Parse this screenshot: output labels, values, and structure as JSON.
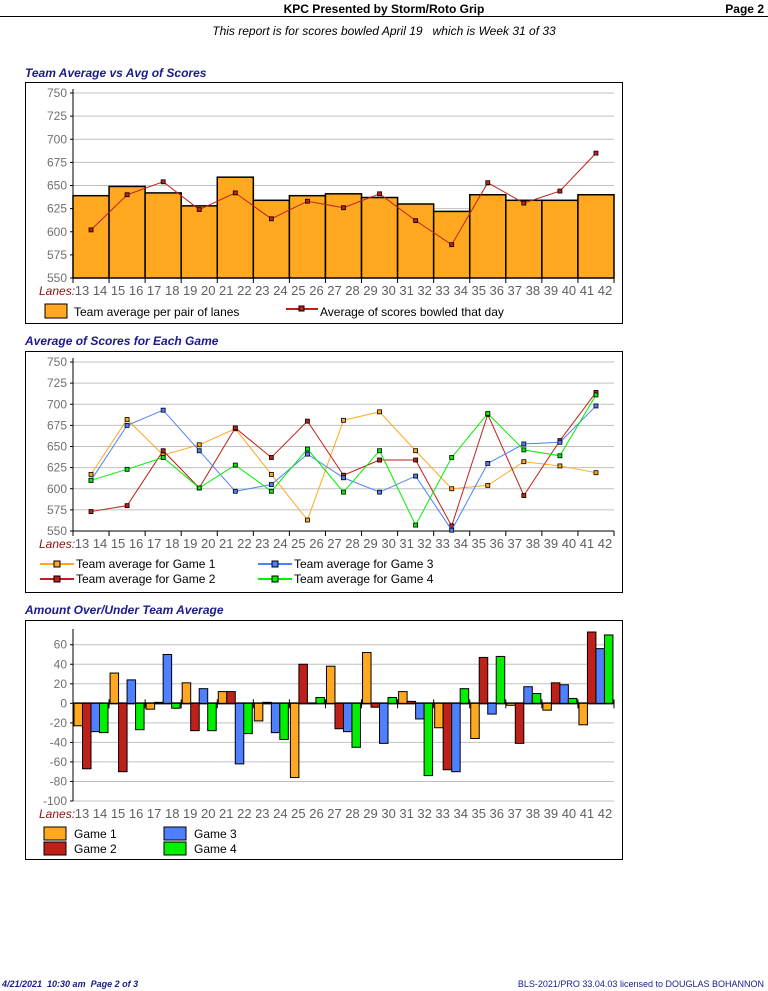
{
  "header": {
    "title": "KPC Presented by Storm/Roto Grip",
    "page": "Page 2"
  },
  "subtitle": "This report is for scores bowled April 19   which is Week 31 of 33",
  "footer": {
    "left": "4/21/2021  10:30 am  Page 2 of 3",
    "right": "BLS-2021/PRO 33.04.03 licensed to DOUGLAS BOHANNON"
  },
  "colors": {
    "bar": "#ffa820",
    "line": "#c0201a",
    "game1": "#ffa820",
    "game2": "#c0201a",
    "game3": "#4f80ff",
    "game4": "#00f000",
    "title": "#1a1a8c"
  },
  "chart_data": [
    {
      "type": "bar",
      "title": "Team Average vs Avg of Scores",
      "xlabel": "Lanes:",
      "categories": [
        "13 14",
        "15 16",
        "17 18",
        "19 20",
        "21 22",
        "23 24",
        "25 26",
        "27 28",
        "29 30",
        "31 32",
        "33 34",
        "35 36",
        "37 38",
        "39 40",
        "41 42"
      ],
      "ylim": [
        550,
        750
      ],
      "yticks": [
        550,
        575,
        600,
        625,
        650,
        675,
        700,
        725,
        750
      ],
      "grid": true,
      "legend": "bottom",
      "series": [
        {
          "name": "Team average per pair of lanes",
          "kind": "bar",
          "values": [
            639,
            649,
            642,
            628,
            659,
            634,
            639,
            641,
            637,
            630,
            622,
            640,
            634,
            634,
            640
          ]
        },
        {
          "name": "Average of scores bowled that day",
          "kind": "line",
          "values": [
            602,
            640,
            654,
            624,
            642,
            614,
            633,
            626,
            641,
            612,
            586,
            653,
            631,
            644,
            685
          ]
        }
      ]
    },
    {
      "type": "line",
      "title": "Average of Scores for Each Game",
      "xlabel": "Lanes:",
      "categories": [
        "13 14",
        "15 16",
        "17 18",
        "19 20",
        "21 22",
        "23 24",
        "25 26",
        "27 28",
        "29 30",
        "31 32",
        "33 34",
        "35 36",
        "37 38",
        "39 40",
        "41 42"
      ],
      "ylim": [
        550,
        750
      ],
      "yticks": [
        550,
        575,
        600,
        625,
        650,
        675,
        700,
        725,
        750
      ],
      "grid": true,
      "legend": "bottom",
      "series": [
        {
          "name": "Team average for Game 1",
          "values": [
            617,
            682,
            640,
            652,
            671,
            617,
            563,
            681,
            691,
            645,
            600,
            604,
            632,
            627,
            619
          ]
        },
        {
          "name": "Team average for Game 2",
          "values": [
            573,
            580,
            645,
            601,
            672,
            637,
            680,
            616,
            634,
            634,
            556,
            688,
            592,
            657,
            714
          ]
        },
        {
          "name": "Team average for Game 3",
          "values": [
            610,
            675,
            693,
            645,
            597,
            605,
            641,
            613,
            596,
            615,
            551,
            630,
            653,
            655,
            698
          ]
        },
        {
          "name": "Team average for Game 4",
          "values": [
            610,
            623,
            637,
            601,
            628,
            597,
            647,
            596,
            645,
            557,
            637,
            689,
            646,
            639,
            711
          ]
        }
      ]
    },
    {
      "type": "bar",
      "title": "Amount Over/Under Team Average",
      "xlabel": "Lanes:",
      "categories": [
        "13 14",
        "15 16",
        "17 18",
        "19 20",
        "21 22",
        "23 24",
        "25 26",
        "27 28",
        "29 30",
        "31 32",
        "33 34",
        "35 36",
        "37 38",
        "39 40",
        "41 42"
      ],
      "ylim": [
        -100,
        72
      ],
      "yticks": [
        -100,
        -80,
        -60,
        -40,
        -20,
        0,
        20,
        40,
        60
      ],
      "grid": true,
      "legend": "bottom",
      "series": [
        {
          "name": "Game 1",
          "values": [
            -23,
            31,
            -6,
            21,
            12,
            -18,
            -76,
            38,
            52,
            12,
            -25,
            -36,
            -2,
            -7,
            -22
          ]
        },
        {
          "name": "Game 2",
          "values": [
            -67,
            -70,
            1,
            -28,
            12,
            1,
            40,
            -26,
            -4,
            2,
            -68,
            47,
            -41,
            21,
            73
          ]
        },
        {
          "name": "Game 3",
          "values": [
            -29,
            24,
            50,
            15,
            -62,
            -30,
            0,
            -29,
            -41,
            -16,
            -70,
            -11,
            17,
            19,
            56
          ]
        },
        {
          "name": "Game 4",
          "values": [
            -30,
            -27,
            -5,
            -28,
            -31,
            -37,
            6,
            -45,
            6,
            -74,
            15,
            48,
            10,
            5,
            70
          ]
        }
      ]
    }
  ]
}
